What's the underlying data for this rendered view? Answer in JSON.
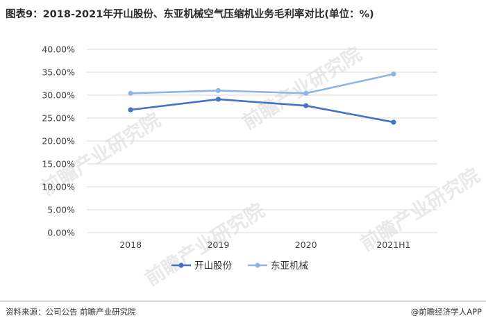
{
  "header": {
    "title": "图表9：2018-2021年开山股份、东亚机械空气压缩机业务毛利率对比(单位：%)"
  },
  "footer": {
    "source": "资料来源：公司公告 前瞻产业研究院",
    "brand": "@前瞻经济学人APP"
  },
  "watermark": {
    "text": "前瞻产业研究院"
  },
  "colors": {
    "kaishan": "#4472C4",
    "dongya": "#8FB5E8",
    "grid": "#d9d9d9",
    "axis_text": "#404040"
  },
  "chart_data": {
    "type": "line",
    "title": "图表9：2018-2021年开山股份、东亚机械空气压缩机业务毛利率对比(单位：%)",
    "categories": [
      "2018",
      "2019",
      "2020",
      "2021H1"
    ],
    "series": [
      {
        "name": "开山股份",
        "values": [
          26.8,
          29.1,
          27.7,
          24.1
        ]
      },
      {
        "name": "东亚机械",
        "values": [
          30.4,
          31.0,
          30.4,
          34.6
        ]
      }
    ],
    "yticks": [
      "0.00%",
      "5.00%",
      "10.00%",
      "15.00%",
      "20.00%",
      "25.00%",
      "30.00%",
      "35.00%",
      "40.00%"
    ],
    "ylim": [
      0,
      40
    ],
    "grid": true,
    "legend": "bottom"
  }
}
